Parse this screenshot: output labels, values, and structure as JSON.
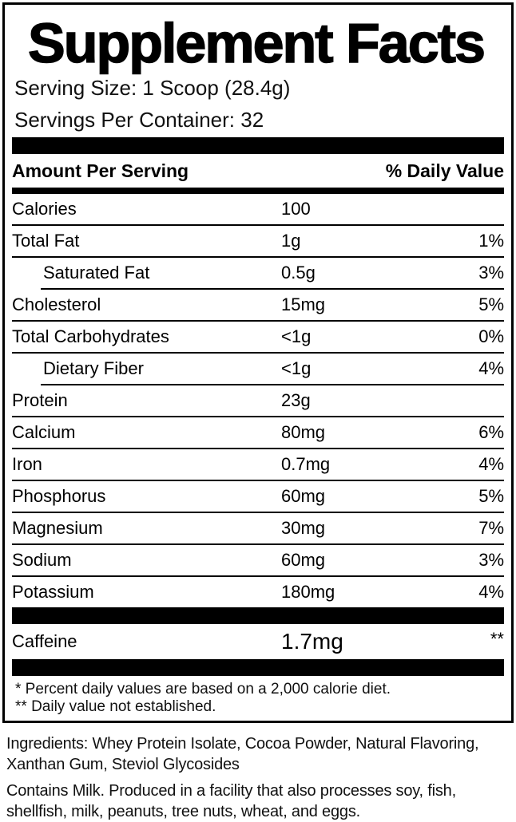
{
  "label": {
    "title": "Supplement Facts",
    "serving_size": "Serving Size: 1 Scoop (28.4g)",
    "servings_per_container": "Servings Per Container: 32",
    "header": {
      "amount_col": "Amount Per Serving",
      "dv_col": "% Daily Value"
    },
    "rows": [
      {
        "name": "Calories",
        "amount": "100",
        "dv": ""
      },
      {
        "name": "Total Fat",
        "amount": "1g",
        "dv": "1%"
      },
      {
        "name": "Saturated Fat",
        "amount": "0.5g",
        "dv": "3%",
        "sub": true
      },
      {
        "name": "Cholesterol",
        "amount": "15mg",
        "dv": "5%"
      },
      {
        "name": "Total Carbohydrates",
        "amount": "<1g",
        "dv": "0%"
      },
      {
        "name": "Dietary Fiber",
        "amount": "<1g",
        "dv": "4%",
        "sub": true
      },
      {
        "name": "Protein",
        "amount": "23g",
        "dv": ""
      },
      {
        "name": "Calcium",
        "amount": "80mg",
        "dv": "6%"
      },
      {
        "name": "Iron",
        "amount": "0.7mg",
        "dv": "4%"
      },
      {
        "name": "Phosphorus",
        "amount": "60mg",
        "dv": "5%"
      },
      {
        "name": "Magnesium",
        "amount": "30mg",
        "dv": "7%"
      },
      {
        "name": "Sodium",
        "amount": "60mg",
        "dv": "3%"
      },
      {
        "name": "Potassium",
        "amount": "180mg",
        "dv": "4%"
      }
    ],
    "caffeine": {
      "name": "Caffeine",
      "amount": "1.7mg",
      "dv": "**"
    },
    "footnotes": [
      "* Percent daily values are based on a 2,000 calorie diet.",
      "** Daily value not established."
    ]
  },
  "ingredients": "Ingredients: Whey Protein Isolate, Cocoa Powder, Natural Flavoring, Xanthan Gum, Steviol Glycosides",
  "allergen": "Contains Milk. Produced in a facility that also processes soy, fish, shellfish, milk, peanuts, tree nuts, wheat, and eggs.",
  "colors": {
    "ink": "#000000",
    "background": "#ffffff"
  }
}
